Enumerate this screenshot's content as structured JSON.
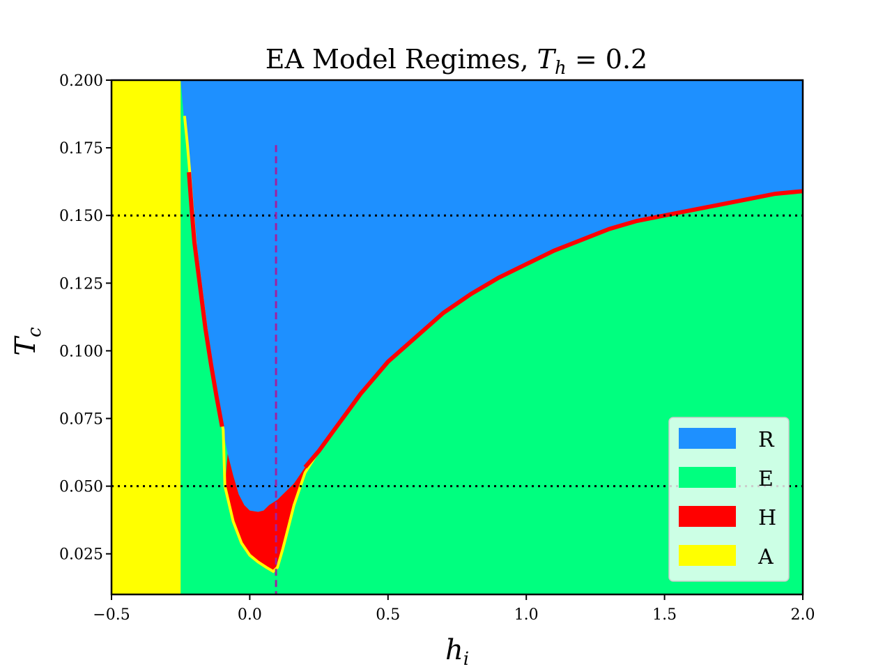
{
  "chart_data": {
    "type": "heatmap",
    "title_text": "EA Model Regimes, ",
    "title_math_var": "T",
    "title_math_sub": "h",
    "title_math_rest": " = 0.2",
    "xlabel_var": "h",
    "xlabel_sub": "i",
    "ylabel_var": "T",
    "ylabel_sub": "c",
    "xlim": [
      -0.5,
      2.0
    ],
    "ylim": [
      0.01,
      0.2
    ],
    "x_ticks": [
      -0.5,
      0.0,
      0.5,
      1.0,
      1.5,
      2.0
    ],
    "x_tick_labels": [
      "−0.5",
      "0.0",
      "0.5",
      "1.0",
      "1.5",
      "2.0"
    ],
    "y_ticks": [
      0.025,
      0.05,
      0.075,
      0.1,
      0.125,
      0.15,
      0.175,
      0.2
    ],
    "y_tick_labels": [
      "0.025",
      "0.050",
      "0.075",
      "0.100",
      "0.125",
      "0.150",
      "0.175",
      "0.200"
    ],
    "legend_position": "lower-right",
    "regimes": [
      {
        "label": "R",
        "color": "#1e90ff"
      },
      {
        "label": "E",
        "color": "#00ff7f"
      },
      {
        "label": "H",
        "color": "#ff0000"
      },
      {
        "label": "A",
        "color": "#ffff00"
      }
    ],
    "a_region_x_max": -0.25,
    "boundary_re": [
      [
        -0.25,
        0.2
      ],
      [
        -0.24,
        0.188
      ],
      [
        -0.23,
        0.178
      ],
      [
        -0.22,
        0.166
      ],
      [
        -0.21,
        0.152
      ],
      [
        -0.2,
        0.14
      ],
      [
        -0.18,
        0.124
      ],
      [
        -0.16,
        0.108
      ],
      [
        -0.14,
        0.095
      ],
      [
        -0.12,
        0.083
      ],
      [
        -0.1,
        0.072
      ],
      [
        -0.08,
        0.062
      ],
      [
        -0.06,
        0.054
      ],
      [
        -0.04,
        0.047
      ],
      [
        -0.02,
        0.043
      ],
      [
        0.0,
        0.041
      ],
      [
        0.03,
        0.0405
      ],
      [
        0.05,
        0.041
      ],
      [
        0.07,
        0.043
      ],
      [
        0.1,
        0.045
      ],
      [
        0.13,
        0.048
      ],
      [
        0.16,
        0.051
      ],
      [
        0.2,
        0.057
      ],
      [
        0.25,
        0.063
      ],
      [
        0.3,
        0.07
      ],
      [
        0.35,
        0.077
      ],
      [
        0.4,
        0.084
      ],
      [
        0.45,
        0.09
      ],
      [
        0.5,
        0.096
      ],
      [
        0.6,
        0.105
      ],
      [
        0.7,
        0.114
      ],
      [
        0.8,
        0.121
      ],
      [
        0.9,
        0.127
      ],
      [
        1.0,
        0.132
      ],
      [
        1.1,
        0.137
      ],
      [
        1.2,
        0.141
      ],
      [
        1.3,
        0.145
      ],
      [
        1.4,
        0.148
      ],
      [
        1.5,
        0.15
      ],
      [
        1.6,
        0.152
      ],
      [
        1.7,
        0.154
      ],
      [
        1.8,
        0.156
      ],
      [
        1.9,
        0.158
      ],
      [
        2.0,
        0.159
      ]
    ],
    "boundary_he": [
      [
        -0.09,
        0.05
      ],
      [
        -0.06,
        0.037
      ],
      [
        -0.03,
        0.029
      ],
      [
        0.0,
        0.0245
      ],
      [
        0.03,
        0.022
      ],
      [
        0.06,
        0.02
      ],
      [
        0.085,
        0.0185
      ],
      [
        0.1,
        0.02
      ],
      [
        0.12,
        0.027
      ],
      [
        0.14,
        0.035
      ],
      [
        0.16,
        0.043
      ],
      [
        0.18,
        0.049
      ],
      [
        0.2,
        0.055
      ],
      [
        0.25,
        0.063
      ]
    ],
    "vertical_line": {
      "x": 0.095,
      "y_top": 0.176,
      "color": "#a020a0",
      "style": "dashed"
    },
    "horizontal_lines": [
      {
        "y": 0.15,
        "color": "#000000",
        "style": "dotted"
      },
      {
        "y": 0.05,
        "color": "#000000",
        "style": "dotted"
      }
    ]
  }
}
